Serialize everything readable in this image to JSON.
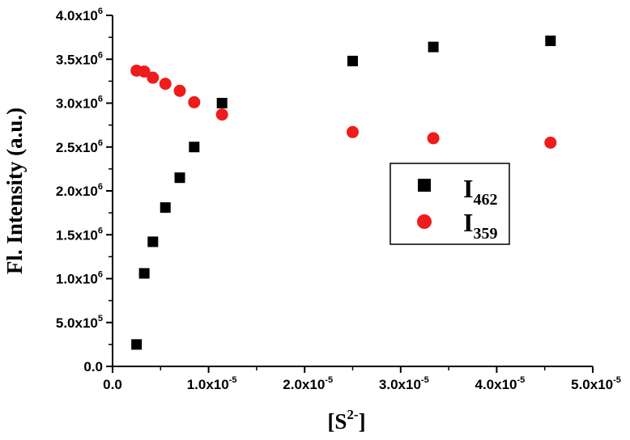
{
  "chart_data": {
    "type": "scatter",
    "xlabel": "[S",
    "xlabel_sup": "2-",
    "xlabel_end": "]",
    "ylabel": "Fl. Intensity (a.u.)",
    "xlim": [
      0,
      5e-05
    ],
    "ylim": [
      0,
      4000000.0
    ],
    "x_ticks": [
      {
        "value": 0,
        "mant": "0.0",
        "exp": ""
      },
      {
        "value": 1e-05,
        "mant": "1.0x10",
        "exp": "-5"
      },
      {
        "value": 2e-05,
        "mant": "2.0x10",
        "exp": "-5"
      },
      {
        "value": 3e-05,
        "mant": "3.0x10",
        "exp": "-5"
      },
      {
        "value": 4e-05,
        "mant": "4.0x10",
        "exp": "-5"
      },
      {
        "value": 5e-05,
        "mant": "5.0x10",
        "exp": "-5"
      }
    ],
    "y_ticks": [
      {
        "value": 0,
        "mant": "0.0",
        "exp": ""
      },
      {
        "value": 500000.0,
        "mant": "5.0x10",
        "exp": "5"
      },
      {
        "value": 1000000.0,
        "mant": "1.0x10",
        "exp": "6"
      },
      {
        "value": 1500000.0,
        "mant": "1.5x10",
        "exp": "6"
      },
      {
        "value": 2000000.0,
        "mant": "2.0x10",
        "exp": "6"
      },
      {
        "value": 2500000.0,
        "mant": "2.5x10",
        "exp": "6"
      },
      {
        "value": 3000000.0,
        "mant": "3.0x10",
        "exp": "6"
      },
      {
        "value": 3500000.0,
        "mant": "3.5x10",
        "exp": "6"
      },
      {
        "value": 4000000.0,
        "mant": "4.0x10",
        "exp": "6"
      }
    ],
    "grid": false,
    "legend": "center-right",
    "series": [
      {
        "name": "I",
        "name_sub": "462",
        "marker": "square",
        "color": "#000000",
        "x": [
          2.5e-06,
          3.3e-06,
          4.2e-06,
          5.5e-06,
          7e-06,
          8.5e-06,
          1.14e-05,
          2.5e-05,
          3.34e-05,
          4.56e-05
        ],
        "y": [
          250000.0,
          1060000.0,
          1420000.0,
          1810000.0,
          2150000.0,
          2500000.0,
          3000000.0,
          3480000.0,
          3640000.0,
          3710000.0
        ]
      },
      {
        "name": "I",
        "name_sub": "359",
        "marker": "circle",
        "color": "#ee1c1c",
        "x": [
          2.5e-06,
          3.3e-06,
          4.2e-06,
          5.5e-06,
          7e-06,
          8.5e-06,
          1.14e-05,
          2.5e-05,
          3.34e-05,
          4.56e-05
        ],
        "y": [
          3370000.0,
          3360000.0,
          3290000.0,
          3220000.0,
          3140000.0,
          3010000.0,
          2870000.0,
          2670000.0,
          2600000.0,
          2550000.0
        ]
      }
    ]
  }
}
